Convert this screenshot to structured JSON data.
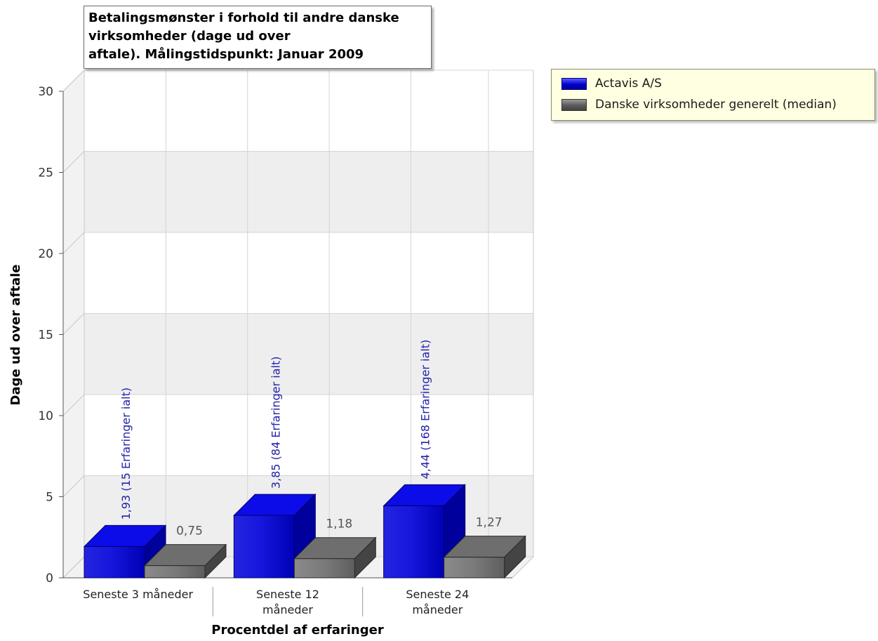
{
  "chart_data": {
    "type": "bar",
    "title_lines": [
      "Betalingsmønster i forhold til andre danske",
      "virksomheder (dage ud over",
      "aftale). Målingstidspunkt: Januar 2009"
    ],
    "xlabel": "Procentdel af erfaringer",
    "ylabel": "Dage ud over aftale",
    "ylim": [
      0,
      30
    ],
    "yticks": [
      0,
      5,
      10,
      15,
      20,
      25,
      30
    ],
    "ytick_labels": [
      "0",
      "5",
      "10",
      "15",
      "20",
      "25",
      "30"
    ],
    "categories": [
      "Seneste 3 måneder",
      "Seneste 12 måneder",
      "Seneste 24 måneder"
    ],
    "category_label_lines": [
      [
        "Seneste 3 måneder"
      ],
      [
        "Seneste 12",
        "måneder"
      ],
      [
        "Seneste 24",
        "måneder"
      ]
    ],
    "series": [
      {
        "name": "Actavis A/S",
        "color": "#0000cc",
        "values": [
          1.93,
          3.85,
          4.44
        ],
        "labels": [
          "1,93 (15 Erfaringer ialt)",
          "3,85 (84 Erfaringer ialt)",
          "4,44 (168 Erfaringer ialt)"
        ]
      },
      {
        "name": "Danske virksomheder generelt (median)",
        "color": "#5a5a5a",
        "values": [
          0.75,
          1.18,
          1.27
        ],
        "labels": [
          "0,75",
          "1,18",
          "1,27"
        ]
      }
    ],
    "legend_position": "top-right",
    "grid": true
  }
}
